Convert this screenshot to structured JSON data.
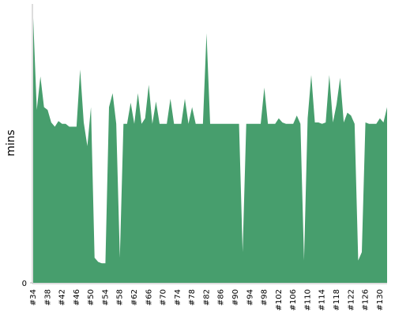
{
  "chart_data": {
    "type": "area",
    "y_label": "mins",
    "color": "#479e6d",
    "categories": [
      "#34",
      null,
      null,
      null,
      "#38",
      null,
      null,
      null,
      "#42",
      null,
      null,
      null,
      "#46",
      null,
      null,
      null,
      "#50",
      null,
      null,
      null,
      "#54",
      null,
      null,
      null,
      "#58",
      null,
      null,
      null,
      "#62",
      null,
      null,
      null,
      "#66",
      null,
      null,
      null,
      "#70",
      null,
      null,
      null,
      "#74",
      null,
      null,
      null,
      "#78",
      null,
      null,
      null,
      "#82",
      null,
      null,
      null,
      "#86",
      null,
      null,
      null,
      "#90",
      null,
      null,
      null,
      "#94",
      null,
      null,
      null,
      "#98",
      null,
      null,
      null,
      "#102",
      null,
      null,
      null,
      "#106",
      null,
      null,
      null,
      "#110",
      null,
      null,
      null,
      "#114",
      null,
      null,
      null,
      "#118",
      null,
      null,
      null,
      "#122",
      null,
      null,
      null,
      "#126",
      null,
      null,
      null,
      "#130",
      null,
      null
    ],
    "values": [
      95,
      62,
      74,
      63,
      62,
      57.5,
      56,
      58,
      57,
      57,
      56,
      56,
      56,
      76.5,
      57.5,
      49,
      63,
      9,
      7.5,
      7,
      7,
      63,
      68,
      57,
      9,
      57,
      57,
      64.6,
      57,
      68,
      57,
      59,
      71,
      57,
      65,
      57,
      57,
      57,
      66,
      57,
      57,
      57,
      66,
      57,
      63,
      57,
      57,
      57,
      89.5,
      57,
      57,
      57,
      57,
      57,
      57,
      57,
      57,
      57,
      11,
      57,
      57,
      57,
      57,
      57,
      70,
      57,
      57,
      57,
      59,
      57.5,
      57,
      57,
      57,
      60,
      57,
      8,
      59,
      74.5,
      57.5,
      57.5,
      57,
      57.5,
      74.5,
      57.5,
      64,
      73.5,
      57.5,
      61,
      60,
      57,
      8,
      11,
      57.5,
      57,
      57,
      57,
      59,
      57.5,
      63
    ],
    "ylim": [
      0,
      100
    ],
    "yticks": [
      0
    ]
  }
}
